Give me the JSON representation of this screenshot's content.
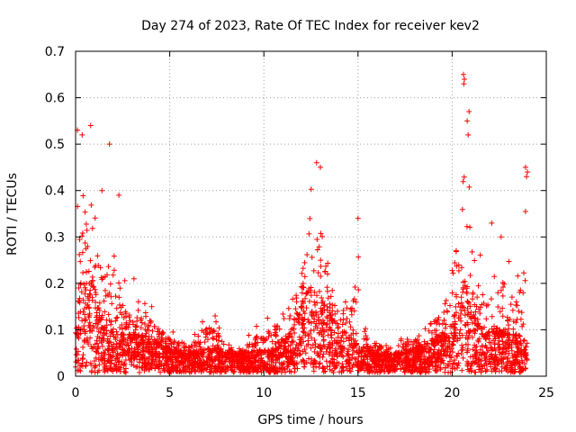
{
  "chart_data": {
    "type": "scatter",
    "title": "Day 274 of 2023, Rate Of TEC Index for receiver kev2",
    "xlabel": "GPS time / hours",
    "ylabel": "ROTI / TECUs",
    "xlim": [
      0,
      25
    ],
    "ylim": [
      0,
      0.7
    ],
    "xticks": [
      "0",
      "5",
      "10",
      "15",
      "20",
      "25"
    ],
    "yticks": [
      "0",
      "0.1",
      "0.2",
      "0.3",
      "0.4",
      "0.5",
      "0.6",
      "0.7"
    ],
    "grid": true,
    "marker": "+",
    "color": "#ff0000",
    "series": [
      {
        "name": "ROTI",
        "envelope": {
          "x": [
            0.0,
            0.3,
            0.6,
            0.9,
            1.2,
            1.6,
            2.0,
            2.5,
            3.0,
            3.5,
            4.0,
            4.5,
            5.0,
            6.0,
            7.0,
            7.5,
            8.0,
            9.0,
            10.0,
            10.5,
            11.0,
            11.5,
            12.0,
            12.4,
            12.8,
            13.2,
            13.6,
            14.0,
            14.5,
            15.0,
            15.5,
            16.0,
            17.0,
            18.0,
            18.5,
            19.0,
            19.5,
            20.0,
            20.4,
            20.7,
            21.0,
            21.4,
            21.8,
            22.2,
            22.6,
            23.0,
            23.5,
            24.0
          ],
          "typical": [
            0.1,
            0.18,
            0.22,
            0.2,
            0.14,
            0.1,
            0.09,
            0.08,
            0.08,
            0.08,
            0.07,
            0.06,
            0.05,
            0.04,
            0.05,
            0.05,
            0.04,
            0.04,
            0.05,
            0.05,
            0.07,
            0.09,
            0.14,
            0.18,
            0.16,
            0.15,
            0.12,
            0.09,
            0.08,
            0.06,
            0.05,
            0.04,
            0.04,
            0.05,
            0.06,
            0.07,
            0.08,
            0.1,
            0.16,
            0.2,
            0.14,
            0.1,
            0.08,
            0.1,
            0.09,
            0.08,
            0.08,
            0.06
          ],
          "peak": [
            0.35,
            0.53,
            0.5,
            0.54,
            0.42,
            0.3,
            0.39,
            0.22,
            0.21,
            0.17,
            0.16,
            0.13,
            0.1,
            0.08,
            0.16,
            0.14,
            0.07,
            0.08,
            0.13,
            0.14,
            0.18,
            0.22,
            0.28,
            0.46,
            0.45,
            0.42,
            0.25,
            0.24,
            0.22,
            0.34,
            0.1,
            0.09,
            0.08,
            0.1,
            0.14,
            0.15,
            0.18,
            0.28,
            0.46,
            0.65,
            0.56,
            0.3,
            0.22,
            0.33,
            0.3,
            0.25,
            0.24,
            0.45
          ]
        },
        "outliers": [
          {
            "x": 0.1,
            "y": 0.53
          },
          {
            "x": 0.35,
            "y": 0.52
          },
          {
            "x": 0.8,
            "y": 0.54
          },
          {
            "x": 1.8,
            "y": 0.5
          },
          {
            "x": 2.3,
            "y": 0.39
          },
          {
            "x": 1.4,
            "y": 0.4
          },
          {
            "x": 20.6,
            "y": 0.65
          },
          {
            "x": 20.65,
            "y": 0.64
          },
          {
            "x": 20.62,
            "y": 0.63
          },
          {
            "x": 20.9,
            "y": 0.57
          },
          {
            "x": 20.8,
            "y": 0.55
          },
          {
            "x": 20.85,
            "y": 0.52
          },
          {
            "x": 12.8,
            "y": 0.46
          },
          {
            "x": 13.0,
            "y": 0.45
          },
          {
            "x": 15.0,
            "y": 0.34
          },
          {
            "x": 23.9,
            "y": 0.45
          },
          {
            "x": 24.0,
            "y": 0.44
          },
          {
            "x": 23.95,
            "y": 0.43
          },
          {
            "x": 22.1,
            "y": 0.33
          },
          {
            "x": 22.6,
            "y": 0.3
          },
          {
            "x": 3.1,
            "y": 0.21
          }
        ]
      }
    ]
  }
}
